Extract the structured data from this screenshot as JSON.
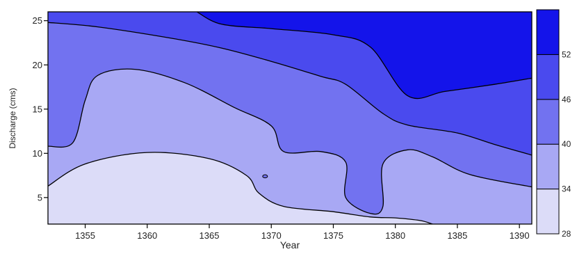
{
  "chart_data": {
    "type": "heatmap",
    "subtype": "filled-contour",
    "xlabel": "Year",
    "ylabel": "Discharge (cms)",
    "xlim": [
      1352,
      1391
    ],
    "ylim": [
      2,
      26
    ],
    "x_ticks": [
      "1355",
      "1360",
      "1365",
      "1370",
      "1375",
      "1380",
      "1385",
      "1390"
    ],
    "y_ticks": [
      "5",
      "10",
      "15",
      "20",
      "25"
    ],
    "levels": [
      "28",
      "34",
      "40",
      "46",
      "52"
    ],
    "level_colors": [
      "#dcdcf8",
      "#a8a8f4",
      "#7272f0",
      "#4a4aee",
      "#1414ea"
    ],
    "contours": [
      {
        "level": "34",
        "points": [
          [
            1352,
            6.3
          ],
          [
            1355,
            8.8
          ],
          [
            1360,
            10.1
          ],
          [
            1365,
            9.4
          ],
          [
            1368,
            7.5
          ],
          [
            1369,
            5.5
          ],
          [
            1371,
            4.0
          ],
          [
            1375,
            3.4
          ],
          [
            1378,
            2.8
          ],
          [
            1380,
            2.7
          ],
          [
            1382,
            2.4
          ],
          [
            1383,
            2
          ]
        ]
      },
      {
        "level": "40",
        "points": [
          [
            1352,
            10.8
          ],
          [
            1354,
            11.2
          ],
          [
            1355,
            16.0
          ],
          [
            1356,
            18.8
          ],
          [
            1359,
            19.5
          ],
          [
            1363,
            18.0
          ],
          [
            1367,
            15.2
          ],
          [
            1370,
            13.1
          ],
          [
            1371,
            10.2
          ],
          [
            1374,
            10.2
          ],
          [
            1376,
            9.0
          ],
          [
            1376,
            5.0
          ],
          [
            1378,
            3.2
          ],
          [
            1379,
            4.0
          ],
          [
            1379,
            8.8
          ],
          [
            1381,
            10.4
          ],
          [
            1383,
            9.6
          ],
          [
            1386,
            7.6
          ],
          [
            1391,
            6.2
          ]
        ]
      },
      {
        "level": "46",
        "points": [
          [
            1352,
            24.8
          ],
          [
            1356,
            24.3
          ],
          [
            1362,
            23.0
          ],
          [
            1366,
            21.9
          ],
          [
            1370,
            20.4
          ],
          [
            1374,
            18.7
          ],
          [
            1376,
            17.8
          ],
          [
            1379,
            14.5
          ],
          [
            1381,
            13.2
          ],
          [
            1385,
            12.3
          ],
          [
            1388,
            11.0
          ],
          [
            1391,
            9.8
          ]
        ]
      },
      {
        "level": "52",
        "points": [
          [
            1364,
            26
          ],
          [
            1366,
            24.6
          ],
          [
            1370,
            24.1
          ],
          [
            1375,
            23.4
          ],
          [
            1378,
            22.0
          ],
          [
            1381,
            16.5
          ],
          [
            1384,
            17.0
          ],
          [
            1388,
            17.8
          ],
          [
            1391,
            18.5
          ]
        ]
      }
    ],
    "small_island": {
      "x": 1369.5,
      "y": 7.4
    }
  }
}
